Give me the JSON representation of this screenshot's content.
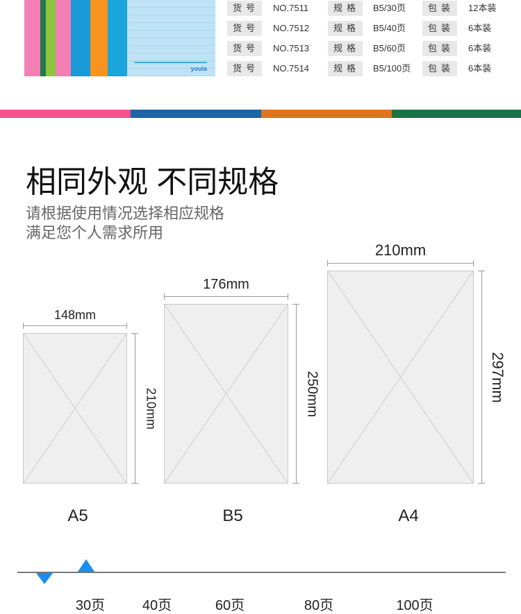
{
  "product_image": {
    "brand": "youia"
  },
  "spec_table": {
    "rows": [
      {
        "item_label": "货号",
        "item": "NO.7511",
        "spec_label": "规格",
        "spec": "B5/30页",
        "pack_label": "包装",
        "pack": "12本装"
      },
      {
        "item_label": "货号",
        "item": "NO.7512",
        "spec_label": "规格",
        "spec": "B5/40页",
        "pack_label": "包装",
        "pack": "6本装"
      },
      {
        "item_label": "货号",
        "item": "NO.7513",
        "spec_label": "规格",
        "spec": "B5/60页",
        "pack_label": "包装",
        "pack": "6本装"
      },
      {
        "item_label": "货号",
        "item": "NO.7514",
        "spec_label": "规格",
        "spec": "B5/100页",
        "pack_label": "包装",
        "pack": "6本装"
      }
    ]
  },
  "color_bar": [
    "#f84f8f",
    "#1d64a4",
    "#de741c",
    "#1b7246"
  ],
  "heading": {
    "title": "相同外观 不同规格",
    "line1": "请根据使用情况选择相应规格",
    "line2": "满足您个人需求所用"
  },
  "sizes": [
    {
      "name": "A5",
      "width": "148mm",
      "height": "210mm"
    },
    {
      "name": "B5",
      "width": "176mm",
      "height": "250mm"
    },
    {
      "name": "A4",
      "width": "210mm",
      "height": "297mm"
    }
  ],
  "pages": {
    "options": [
      "30页",
      "40页",
      "60页",
      "80页",
      "100页"
    ],
    "accent": "#1a8ef0"
  }
}
